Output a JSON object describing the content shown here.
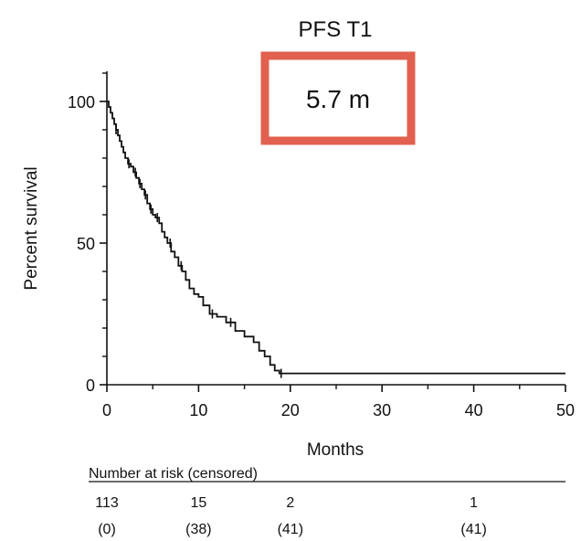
{
  "chart_data": {
    "type": "line",
    "title": "PFS T1",
    "annotation": "5.7 m",
    "annotation_border_color": "#e2604f",
    "xlabel": "Months",
    "ylabel": "Percent survival",
    "xlim": [
      0,
      50
    ],
    "ylim": [
      0,
      100
    ],
    "x_ticks": [
      "0",
      "10",
      "20",
      "30",
      "40",
      "50"
    ],
    "y_ticks": [
      "0",
      "50",
      "100"
    ],
    "grid": false,
    "series": [
      {
        "line_color": "#111111",
        "step_points": [
          [
            0,
            100
          ],
          [
            0.2,
            98
          ],
          [
            0.4,
            96
          ],
          [
            0.6,
            94
          ],
          [
            0.8,
            92
          ],
          [
            1.0,
            90
          ],
          [
            1.2,
            88
          ],
          [
            1.4,
            86
          ],
          [
            1.6,
            84
          ],
          [
            1.8,
            82
          ],
          [
            2.0,
            80
          ],
          [
            2.3,
            78
          ],
          [
            2.6,
            77
          ],
          [
            2.9,
            75
          ],
          [
            3.2,
            73
          ],
          [
            3.5,
            71
          ],
          [
            3.8,
            69
          ],
          [
            4.1,
            67
          ],
          [
            4.4,
            64
          ],
          [
            4.7,
            62
          ],
          [
            5.0,
            60
          ],
          [
            5.3,
            59
          ],
          [
            5.7,
            57
          ],
          [
            6.0,
            54
          ],
          [
            6.3,
            52
          ],
          [
            6.6,
            50
          ],
          [
            7.0,
            47
          ],
          [
            7.4,
            45
          ],
          [
            7.8,
            42
          ],
          [
            8.2,
            40
          ],
          [
            8.6,
            37
          ],
          [
            9.0,
            34
          ],
          [
            9.5,
            32
          ],
          [
            10.0,
            31
          ],
          [
            10.5,
            28
          ],
          [
            11.2,
            25
          ],
          [
            12.0,
            24
          ],
          [
            13.0,
            22
          ],
          [
            14.0,
            19
          ],
          [
            15.0,
            17
          ],
          [
            16.0,
            15
          ],
          [
            16.6,
            12
          ],
          [
            17.2,
            10
          ],
          [
            17.8,
            7
          ],
          [
            18.3,
            5
          ],
          [
            18.8,
            4
          ],
          [
            50,
            4
          ]
        ],
        "censor_x": [
          1.0,
          2.4,
          3.1,
          3.6,
          4.2,
          4.8,
          5.5,
          6.9,
          8.1,
          11.5,
          13.5,
          19.0
        ]
      }
    ],
    "risk_table": {
      "header": "Number at risk (censored)",
      "times": [
        0,
        10,
        20,
        40
      ],
      "at_risk": [
        "113",
        "15",
        "2",
        "1"
      ],
      "censored": [
        "(0)",
        "(38)",
        "(41)",
        "(41)"
      ]
    }
  }
}
